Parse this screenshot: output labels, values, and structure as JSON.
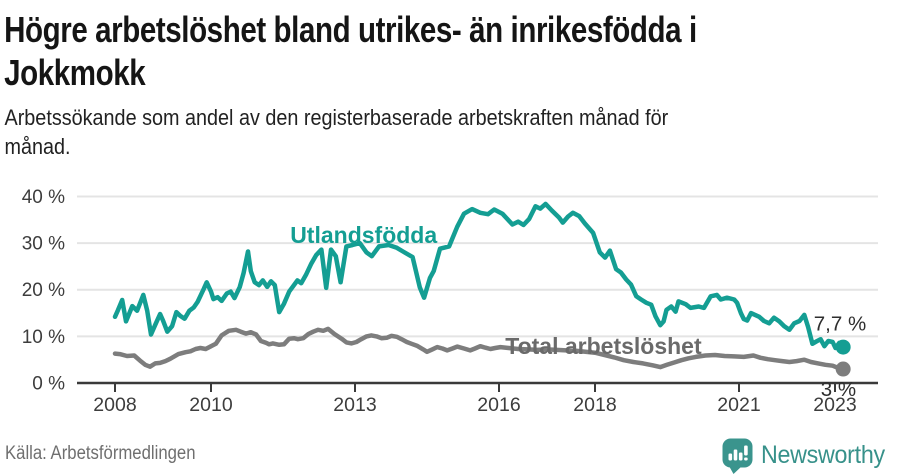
{
  "header": {
    "title": "Högre arbetslöshet bland utrikes- än inrikesfödda i\nJokkmokk",
    "subtitle": "Arbetssökande som andel av den registerbaserade arbetskraften månad för\nmånad."
  },
  "footer": {
    "source": "Källa: Arbetsförmedlingen",
    "brand": "Newsworthy"
  },
  "colors": {
    "foreign_born_line": "#149e93",
    "total_line": "#7d7d7d",
    "total_label": "#6a6a6a",
    "end_label_text": "#2e2e2e",
    "axis": "#3a3a3a",
    "axis_text": "#3d3d3d",
    "gridline": "#e4e4e4",
    "brand_teal": "#3a948d"
  },
  "chart_data": {
    "type": "line",
    "title": "Högre arbetslöshet bland utrikes- än inrikesfödda i Jokkmokk",
    "subtitle": "Arbetssökande som andel av den registerbaserade arbetskraften månad för månad.",
    "xlabel": "",
    "ylabel": "",
    "y_unit": "%",
    "x_range": [
      2007.2,
      2023.9
    ],
    "ylim": [
      0,
      40
    ],
    "grid": true,
    "legend_position": "inline-labels",
    "x_ticks": [
      2008,
      2010,
      2013,
      2016,
      2018,
      2021,
      2023
    ],
    "x_tick_labels": [
      "2008",
      "2010",
      "2013",
      "2016",
      "2018",
      "2021",
      "2023"
    ],
    "y_ticks": [
      0,
      10,
      20,
      30,
      40
    ],
    "y_tick_labels": [
      "0 %",
      "10 %",
      "20 %",
      "30 %",
      "40 %"
    ],
    "series": [
      {
        "id": "total",
        "name": "Total arbetslöshet",
        "color": "#7d7d7d",
        "label_color": "#6a6a6a",
        "label": {
          "text": "Total arbetslöshet",
          "x": 2016.13,
          "y": 6.2,
          "anchor": "start"
        },
        "end_label": {
          "text": "3 %",
          "x": 2023.44,
          "y": -2.8,
          "anchor": "end"
        },
        "end_value": 3.0,
        "points": [
          [
            2008.0,
            6.3
          ],
          [
            2008.1,
            6.2
          ],
          [
            2008.25,
            5.8
          ],
          [
            2008.4,
            5.9
          ],
          [
            2008.52,
            4.8
          ],
          [
            2008.63,
            3.9
          ],
          [
            2008.73,
            3.5
          ],
          [
            2008.84,
            4.2
          ],
          [
            2008.94,
            4.3
          ],
          [
            2009.05,
            4.7
          ],
          [
            2009.15,
            5.2
          ],
          [
            2009.32,
            6.2
          ],
          [
            2009.47,
            6.6
          ],
          [
            2009.57,
            6.8
          ],
          [
            2009.68,
            7.3
          ],
          [
            2009.78,
            7.5
          ],
          [
            2009.89,
            7.3
          ],
          [
            2010.0,
            7.9
          ],
          [
            2010.1,
            8.4
          ],
          [
            2010.22,
            10.2
          ],
          [
            2010.37,
            11.2
          ],
          [
            2010.52,
            11.4
          ],
          [
            2010.62,
            11.0
          ],
          [
            2010.73,
            10.6
          ],
          [
            2010.83,
            10.9
          ],
          [
            2010.94,
            10.4
          ],
          [
            2011.04,
            9.0
          ],
          [
            2011.15,
            8.6
          ],
          [
            2011.21,
            8.3
          ],
          [
            2011.29,
            8.5
          ],
          [
            2011.42,
            8.2
          ],
          [
            2011.52,
            8.3
          ],
          [
            2011.63,
            9.5
          ],
          [
            2011.73,
            9.6
          ],
          [
            2011.81,
            9.4
          ],
          [
            2011.92,
            9.6
          ],
          [
            2012.03,
            10.5
          ],
          [
            2012.13,
            11.0
          ],
          [
            2012.23,
            11.4
          ],
          [
            2012.34,
            11.2
          ],
          [
            2012.44,
            11.6
          ],
          [
            2012.57,
            10.5
          ],
          [
            2012.72,
            9.5
          ],
          [
            2012.82,
            8.7
          ],
          [
            2012.93,
            8.5
          ],
          [
            2013.03,
            8.8
          ],
          [
            2013.13,
            9.4
          ],
          [
            2013.24,
            10.0
          ],
          [
            2013.34,
            10.2
          ],
          [
            2013.45,
            10.0
          ],
          [
            2013.55,
            9.6
          ],
          [
            2013.66,
            9.7
          ],
          [
            2013.76,
            10.1
          ],
          [
            2013.87,
            9.9
          ],
          [
            2013.97,
            9.4
          ],
          [
            2014.08,
            8.8
          ],
          [
            2014.18,
            8.4
          ],
          [
            2014.29,
            8.0
          ],
          [
            2014.42,
            7.2
          ],
          [
            2014.5,
            6.7
          ],
          [
            2014.61,
            7.2
          ],
          [
            2014.71,
            7.7
          ],
          [
            2014.82,
            7.4
          ],
          [
            2014.92,
            7.0
          ],
          [
            2015.03,
            7.4
          ],
          [
            2015.13,
            7.8
          ],
          [
            2015.27,
            7.4
          ],
          [
            2015.4,
            7.0
          ],
          [
            2015.5,
            7.4
          ],
          [
            2015.61,
            7.9
          ],
          [
            2015.71,
            7.6
          ],
          [
            2015.82,
            7.3
          ],
          [
            2015.92,
            7.5
          ],
          [
            2016.03,
            7.7
          ],
          [
            2016.2,
            7.5
          ],
          [
            2016.4,
            7.3
          ],
          [
            2016.6,
            7.2
          ],
          [
            2016.8,
            7.1
          ],
          [
            2017.0,
            7.2
          ],
          [
            2017.2,
            7.1
          ],
          [
            2017.4,
            7.0
          ],
          [
            2017.6,
            6.9
          ],
          [
            2017.8,
            6.7
          ],
          [
            2018.0,
            6.5
          ],
          [
            2018.2,
            6.0
          ],
          [
            2018.4,
            5.5
          ],
          [
            2018.6,
            4.9
          ],
          [
            2018.8,
            4.5
          ],
          [
            2019.0,
            4.2
          ],
          [
            2019.2,
            3.8
          ],
          [
            2019.36,
            3.4
          ],
          [
            2019.5,
            3.9
          ],
          [
            2019.65,
            4.4
          ],
          [
            2019.8,
            4.9
          ],
          [
            2019.95,
            5.3
          ],
          [
            2020.1,
            5.6
          ],
          [
            2020.3,
            5.9
          ],
          [
            2020.5,
            6.0
          ],
          [
            2020.7,
            5.8
          ],
          [
            2020.9,
            5.7
          ],
          [
            2021.1,
            5.6
          ],
          [
            2021.3,
            5.9
          ],
          [
            2021.45,
            5.4
          ],
          [
            2021.6,
            5.1
          ],
          [
            2021.75,
            4.9
          ],
          [
            2021.9,
            4.7
          ],
          [
            2022.05,
            4.5
          ],
          [
            2022.2,
            4.7
          ],
          [
            2022.36,
            5.0
          ],
          [
            2022.5,
            4.5
          ],
          [
            2022.65,
            4.2
          ],
          [
            2022.8,
            3.9
          ],
          [
            2022.95,
            3.7
          ],
          [
            2023.05,
            3.3
          ],
          [
            2023.17,
            3.0
          ]
        ]
      },
      {
        "id": "utlandsfodda",
        "name": "Utlandsfödda",
        "color": "#149e93",
        "label_color": "#149e93",
        "label": {
          "text": "Utlandsfödda",
          "x": 2011.65,
          "y": 30.0,
          "anchor": "start"
        },
        "end_label": {
          "text": "7,7 %",
          "x": 2023.65,
          "y": 11.3,
          "anchor": "end"
        },
        "end_value": 7.7,
        "points": [
          [
            2008.0,
            14.2
          ],
          [
            2008.06,
            15.6
          ],
          [
            2008.15,
            17.8
          ],
          [
            2008.23,
            13.2
          ],
          [
            2008.36,
            16.5
          ],
          [
            2008.46,
            15.5
          ],
          [
            2008.59,
            18.9
          ],
          [
            2008.67,
            15.5
          ],
          [
            2008.75,
            10.4
          ],
          [
            2008.84,
            12.5
          ],
          [
            2008.94,
            14.8
          ],
          [
            2009.0,
            13.4
          ],
          [
            2009.09,
            11.0
          ],
          [
            2009.19,
            12.2
          ],
          [
            2009.28,
            15.2
          ],
          [
            2009.36,
            14.4
          ],
          [
            2009.45,
            13.8
          ],
          [
            2009.55,
            15.5
          ],
          [
            2009.64,
            16.2
          ],
          [
            2009.72,
            17.4
          ],
          [
            2009.85,
            20.2
          ],
          [
            2009.91,
            21.6
          ],
          [
            2010.0,
            19.6
          ],
          [
            2010.05,
            18.0
          ],
          [
            2010.14,
            18.4
          ],
          [
            2010.22,
            17.6
          ],
          [
            2010.33,
            19.2
          ],
          [
            2010.41,
            19.6
          ],
          [
            2010.49,
            18.2
          ],
          [
            2010.6,
            20.6
          ],
          [
            2010.68,
            23.6
          ],
          [
            2010.77,
            28.2
          ],
          [
            2010.83,
            24.0
          ],
          [
            2010.91,
            21.6
          ],
          [
            2011.0,
            21.0
          ],
          [
            2011.08,
            22.0
          ],
          [
            2011.17,
            20.6
          ],
          [
            2011.25,
            21.8
          ],
          [
            2011.33,
            21.0
          ],
          [
            2011.42,
            15.2
          ],
          [
            2011.52,
            17.0
          ],
          [
            2011.63,
            19.6
          ],
          [
            2011.73,
            21.0
          ],
          [
            2011.8,
            22.0
          ],
          [
            2011.88,
            21.4
          ],
          [
            2011.98,
            23.2
          ],
          [
            2012.09,
            25.6
          ],
          [
            2012.19,
            27.4
          ],
          [
            2012.3,
            28.6
          ],
          [
            2012.4,
            20.4
          ],
          [
            2012.5,
            28.6
          ],
          [
            2012.6,
            27.2
          ],
          [
            2012.7,
            21.6
          ],
          [
            2012.82,
            29.3
          ],
          [
            2012.95,
            29.6
          ],
          [
            2013.1,
            30.0
          ],
          [
            2013.24,
            28.0
          ],
          [
            2013.35,
            27.2
          ],
          [
            2013.5,
            29.3
          ],
          [
            2013.7,
            29.6
          ],
          [
            2013.87,
            29.0
          ],
          [
            2014.0,
            28.2
          ],
          [
            2014.2,
            27.0
          ],
          [
            2014.35,
            20.5
          ],
          [
            2014.44,
            18.3
          ],
          [
            2014.56,
            22.5
          ],
          [
            2014.64,
            24.0
          ],
          [
            2014.77,
            28.8
          ],
          [
            2014.96,
            29.3
          ],
          [
            2015.13,
            33.5
          ],
          [
            2015.27,
            36.3
          ],
          [
            2015.44,
            37.3
          ],
          [
            2015.61,
            36.5
          ],
          [
            2015.77,
            36.2
          ],
          [
            2015.9,
            37.2
          ],
          [
            2016.07,
            36.3
          ],
          [
            2016.28,
            34.0
          ],
          [
            2016.4,
            34.6
          ],
          [
            2016.51,
            33.9
          ],
          [
            2016.63,
            35.2
          ],
          [
            2016.76,
            37.9
          ],
          [
            2016.86,
            37.4
          ],
          [
            2016.97,
            38.4
          ],
          [
            2017.1,
            37.0
          ],
          [
            2017.25,
            35.5
          ],
          [
            2017.33,
            34.4
          ],
          [
            2017.44,
            35.7
          ],
          [
            2017.54,
            36.5
          ],
          [
            2017.67,
            35.8
          ],
          [
            2017.79,
            34.2
          ],
          [
            2017.96,
            32.2
          ],
          [
            2018.1,
            28.0
          ],
          [
            2018.21,
            26.9
          ],
          [
            2018.31,
            28.4
          ],
          [
            2018.44,
            24.4
          ],
          [
            2018.54,
            23.7
          ],
          [
            2018.65,
            22.2
          ],
          [
            2018.75,
            21.1
          ],
          [
            2018.86,
            18.6
          ],
          [
            2018.96,
            17.9
          ],
          [
            2019.07,
            17.2
          ],
          [
            2019.17,
            16.8
          ],
          [
            2019.26,
            14.3
          ],
          [
            2019.36,
            12.4
          ],
          [
            2019.43,
            13.2
          ],
          [
            2019.49,
            15.7
          ],
          [
            2019.59,
            16.4
          ],
          [
            2019.68,
            15.3
          ],
          [
            2019.74,
            17.5
          ],
          [
            2019.89,
            16.9
          ],
          [
            2019.99,
            16.1
          ],
          [
            2020.16,
            16.4
          ],
          [
            2020.27,
            16.1
          ],
          [
            2020.41,
            18.6
          ],
          [
            2020.54,
            18.9
          ],
          [
            2020.62,
            17.9
          ],
          [
            2020.75,
            18.3
          ],
          [
            2020.9,
            17.9
          ],
          [
            2020.96,
            17.2
          ],
          [
            2021.04,
            15.0
          ],
          [
            2021.1,
            13.7
          ],
          [
            2021.17,
            13.4
          ],
          [
            2021.25,
            15.0
          ],
          [
            2021.42,
            14.2
          ],
          [
            2021.52,
            13.3
          ],
          [
            2021.63,
            12.8
          ],
          [
            2021.73,
            14.0
          ],
          [
            2021.84,
            13.2
          ],
          [
            2021.94,
            12.2
          ],
          [
            2022.05,
            11.4
          ],
          [
            2022.15,
            12.8
          ],
          [
            2022.26,
            13.3
          ],
          [
            2022.36,
            14.6
          ],
          [
            2022.44,
            12.0
          ],
          [
            2022.53,
            8.4
          ],
          [
            2022.61,
            8.9
          ],
          [
            2022.7,
            9.4
          ],
          [
            2022.78,
            7.9
          ],
          [
            2022.86,
            9.0
          ],
          [
            2022.95,
            8.8
          ],
          [
            2023.01,
            7.5
          ],
          [
            2023.09,
            8.6
          ],
          [
            2023.17,
            7.7
          ]
        ]
      }
    ]
  }
}
